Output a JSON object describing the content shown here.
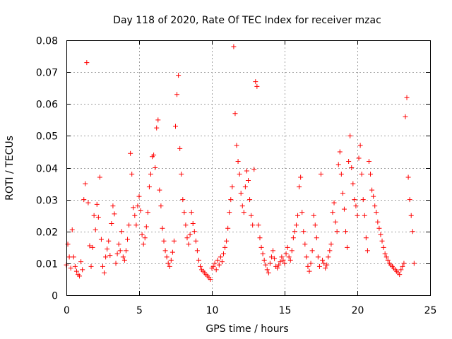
{
  "chart_data": {
    "type": "scatter",
    "title": "Day 118 of 2020, Rate Of TEC Index for receiver mzac",
    "xlabel": "GPS time / hours",
    "ylabel": "ROTI / TECUs",
    "xlim": [
      0,
      25
    ],
    "ylim": [
      0,
      0.08
    ],
    "x_ticks": [
      0,
      5,
      10,
      15,
      20,
      25
    ],
    "y_ticks": [
      0,
      0.01,
      0.02,
      0.03,
      0.04,
      0.05,
      0.06,
      0.07,
      0.08
    ],
    "x_tick_labels": [
      "0",
      "5",
      "10",
      "15",
      "20",
      "25"
    ],
    "y_tick_labels": [
      "0",
      "0.01",
      "0.02",
      "0.03",
      "0.04",
      "0.05",
      "0.06",
      "0.07",
      "0.08"
    ],
    "grid": true,
    "marker": "+",
    "marker_color": "#ff0000",
    "series": [
      {
        "name": "ROTI",
        "points": [
          [
            0.0,
            0.0095
          ],
          [
            0.1,
            0.016
          ],
          [
            0.2,
            0.012
          ],
          [
            0.3,
            0.0085
          ],
          [
            0.4,
            0.0205
          ],
          [
            0.5,
            0.012
          ],
          [
            0.6,
            0.009
          ],
          [
            0.7,
            0.0075
          ],
          [
            0.8,
            0.0065
          ],
          [
            0.9,
            0.006
          ],
          [
            1.0,
            0.0105
          ],
          [
            1.1,
            0.008
          ],
          [
            1.2,
            0.03
          ],
          [
            1.3,
            0.035
          ],
          [
            1.4,
            0.073
          ],
          [
            1.5,
            0.029
          ],
          [
            1.6,
            0.0155
          ],
          [
            1.7,
            0.009
          ],
          [
            1.8,
            0.015
          ],
          [
            1.9,
            0.025
          ],
          [
            2.0,
            0.0205
          ],
          [
            2.1,
            0.0285
          ],
          [
            2.2,
            0.0245
          ],
          [
            2.3,
            0.037
          ],
          [
            2.4,
            0.0175
          ],
          [
            2.5,
            0.009
          ],
          [
            2.6,
            0.007
          ],
          [
            2.7,
            0.012
          ],
          [
            2.8,
            0.0145
          ],
          [
            2.9,
            0.017
          ],
          [
            3.0,
            0.0125
          ],
          [
            3.1,
            0.0225
          ],
          [
            3.2,
            0.028
          ],
          [
            3.3,
            0.0255
          ],
          [
            3.4,
            0.01
          ],
          [
            3.5,
            0.013
          ],
          [
            3.6,
            0.016
          ],
          [
            3.7,
            0.014
          ],
          [
            3.8,
            0.02
          ],
          [
            3.9,
            0.012
          ],
          [
            4.0,
            0.011
          ],
          [
            4.1,
            0.014
          ],
          [
            4.2,
            0.0175
          ],
          [
            4.3,
            0.022
          ],
          [
            4.4,
            0.0445
          ],
          [
            4.5,
            0.038
          ],
          [
            4.6,
            0.0275
          ],
          [
            4.7,
            0.025
          ],
          [
            4.8,
            0.022
          ],
          [
            4.9,
            0.028
          ],
          [
            5.0,
            0.031
          ],
          [
            5.1,
            0.0265
          ],
          [
            5.2,
            0.019
          ],
          [
            5.3,
            0.016
          ],
          [
            5.4,
            0.018
          ],
          [
            5.5,
            0.0215
          ],
          [
            5.6,
            0.026
          ],
          [
            5.7,
            0.034
          ],
          [
            5.8,
            0.038
          ],
          [
            5.9,
            0.0435
          ],
          [
            6.0,
            0.044
          ],
          [
            6.1,
            0.04
          ],
          [
            6.2,
            0.0525
          ],
          [
            6.3,
            0.055
          ],
          [
            6.4,
            0.033
          ],
          [
            6.5,
            0.028
          ],
          [
            6.6,
            0.021
          ],
          [
            6.7,
            0.017
          ],
          [
            6.8,
            0.014
          ],
          [
            6.9,
            0.012
          ],
          [
            7.0,
            0.01
          ],
          [
            7.1,
            0.009
          ],
          [
            7.2,
            0.011
          ],
          [
            7.3,
            0.0135
          ],
          [
            7.4,
            0.017
          ],
          [
            7.5,
            0.053
          ],
          [
            7.6,
            0.063
          ],
          [
            7.7,
            0.069
          ],
          [
            7.8,
            0.046
          ],
          [
            7.9,
            0.038
          ],
          [
            8.0,
            0.03
          ],
          [
            8.1,
            0.026
          ],
          [
            8.2,
            0.022
          ],
          [
            8.3,
            0.018
          ],
          [
            8.4,
            0.016
          ],
          [
            8.5,
            0.019
          ],
          [
            8.6,
            0.026
          ],
          [
            8.7,
            0.0225
          ],
          [
            8.8,
            0.02
          ],
          [
            8.9,
            0.017
          ],
          [
            9.0,
            0.014
          ],
          [
            9.1,
            0.011
          ],
          [
            9.2,
            0.009
          ],
          [
            9.3,
            0.008
          ],
          [
            9.4,
            0.0075
          ],
          [
            9.5,
            0.007
          ],
          [
            9.6,
            0.0065
          ],
          [
            9.7,
            0.006
          ],
          [
            9.8,
            0.0055
          ],
          [
            9.9,
            0.005
          ],
          [
            10.0,
            0.0085
          ],
          [
            10.1,
            0.009
          ],
          [
            10.2,
            0.01
          ],
          [
            10.3,
            0.008
          ],
          [
            10.4,
            0.011
          ],
          [
            10.5,
            0.0095
          ],
          [
            10.6,
            0.012
          ],
          [
            10.7,
            0.0105
          ],
          [
            10.8,
            0.013
          ],
          [
            10.9,
            0.015
          ],
          [
            11.0,
            0.017
          ],
          [
            11.1,
            0.021
          ],
          [
            11.2,
            0.026
          ],
          [
            11.3,
            0.03
          ],
          [
            11.4,
            0.034
          ],
          [
            11.5,
            0.078
          ],
          [
            11.6,
            0.057
          ],
          [
            11.7,
            0.047
          ],
          [
            11.8,
            0.042
          ],
          [
            11.9,
            0.038
          ],
          [
            12.0,
            0.032
          ],
          [
            12.1,
            0.028
          ],
          [
            12.2,
            0.026
          ],
          [
            12.3,
            0.034
          ],
          [
            12.4,
            0.039
          ],
          [
            12.5,
            0.036
          ],
          [
            12.6,
            0.03
          ],
          [
            12.7,
            0.025
          ],
          [
            12.8,
            0.022
          ],
          [
            12.9,
            0.0395
          ],
          [
            13.0,
            0.067
          ],
          [
            13.1,
            0.0655
          ],
          [
            13.2,
            0.022
          ],
          [
            13.3,
            0.018
          ],
          [
            13.4,
            0.015
          ],
          [
            13.5,
            0.013
          ],
          [
            13.6,
            0.011
          ],
          [
            13.7,
            0.0095
          ],
          [
            13.8,
            0.008
          ],
          [
            13.9,
            0.007
          ],
          [
            14.0,
            0.01
          ],
          [
            14.1,
            0.012
          ],
          [
            14.2,
            0.014
          ],
          [
            14.3,
            0.0115
          ],
          [
            14.4,
            0.009
          ],
          [
            14.5,
            0.0085
          ],
          [
            14.6,
            0.0095
          ],
          [
            14.7,
            0.0105
          ],
          [
            14.8,
            0.012
          ],
          [
            14.9,
            0.011
          ],
          [
            15.0,
            0.01
          ],
          [
            15.1,
            0.013
          ],
          [
            15.2,
            0.015
          ],
          [
            15.3,
            0.012
          ],
          [
            15.4,
            0.011
          ],
          [
            15.5,
            0.014
          ],
          [
            15.6,
            0.018
          ],
          [
            15.7,
            0.02
          ],
          [
            15.8,
            0.022
          ],
          [
            15.9,
            0.025
          ],
          [
            16.0,
            0.034
          ],
          [
            16.1,
            0.037
          ],
          [
            16.2,
            0.026
          ],
          [
            16.3,
            0.02
          ],
          [
            16.4,
            0.016
          ],
          [
            16.5,
            0.012
          ],
          [
            16.6,
            0.009
          ],
          [
            16.7,
            0.0075
          ],
          [
            16.8,
            0.01
          ],
          [
            16.9,
            0.014
          ],
          [
            17.0,
            0.025
          ],
          [
            17.1,
            0.022
          ],
          [
            17.2,
            0.018
          ],
          [
            17.3,
            0.012
          ],
          [
            17.4,
            0.009
          ],
          [
            17.5,
            0.038
          ],
          [
            17.6,
            0.011
          ],
          [
            17.7,
            0.01
          ],
          [
            17.8,
            0.0085
          ],
          [
            17.9,
            0.0095
          ],
          [
            18.0,
            0.012
          ],
          [
            18.1,
            0.014
          ],
          [
            18.2,
            0.016
          ],
          [
            18.3,
            0.026
          ],
          [
            18.4,
            0.029
          ],
          [
            18.5,
            0.023
          ],
          [
            18.6,
            0.02
          ],
          [
            18.7,
            0.041
          ],
          [
            18.8,
            0.045
          ],
          [
            18.9,
            0.038
          ],
          [
            19.0,
            0.032
          ],
          [
            19.1,
            0.027
          ],
          [
            19.2,
            0.02
          ],
          [
            19.3,
            0.015
          ],
          [
            19.4,
            0.042
          ],
          [
            19.5,
            0.05
          ],
          [
            19.6,
            0.04
          ],
          [
            19.7,
            0.035
          ],
          [
            19.8,
            0.03
          ],
          [
            19.9,
            0.028
          ],
          [
            20.0,
            0.025
          ],
          [
            20.1,
            0.043
          ],
          [
            20.2,
            0.047
          ],
          [
            20.3,
            0.038
          ],
          [
            20.4,
            0.03
          ],
          [
            20.5,
            0.025
          ],
          [
            20.6,
            0.018
          ],
          [
            20.7,
            0.014
          ],
          [
            20.8,
            0.042
          ],
          [
            20.9,
            0.038
          ],
          [
            21.0,
            0.033
          ],
          [
            21.1,
            0.031
          ],
          [
            21.2,
            0.028
          ],
          [
            21.3,
            0.026
          ],
          [
            21.4,
            0.023
          ],
          [
            21.5,
            0.021
          ],
          [
            21.6,
            0.019
          ],
          [
            21.7,
            0.017
          ],
          [
            21.8,
            0.015
          ],
          [
            21.9,
            0.013
          ],
          [
            22.0,
            0.012
          ],
          [
            22.1,
            0.011
          ],
          [
            22.2,
            0.01
          ],
          [
            22.3,
            0.0095
          ],
          [
            22.4,
            0.009
          ],
          [
            22.5,
            0.0085
          ],
          [
            22.6,
            0.008
          ],
          [
            22.7,
            0.0075
          ],
          [
            22.8,
            0.007
          ],
          [
            22.9,
            0.0065
          ],
          [
            23.0,
            0.008
          ],
          [
            23.1,
            0.009
          ],
          [
            23.2,
            0.01
          ],
          [
            23.3,
            0.056
          ],
          [
            23.4,
            0.062
          ],
          [
            23.5,
            0.037
          ],
          [
            23.6,
            0.03
          ],
          [
            23.7,
            0.025
          ],
          [
            23.8,
            0.02
          ],
          [
            23.9,
            0.01
          ]
        ]
      }
    ]
  }
}
